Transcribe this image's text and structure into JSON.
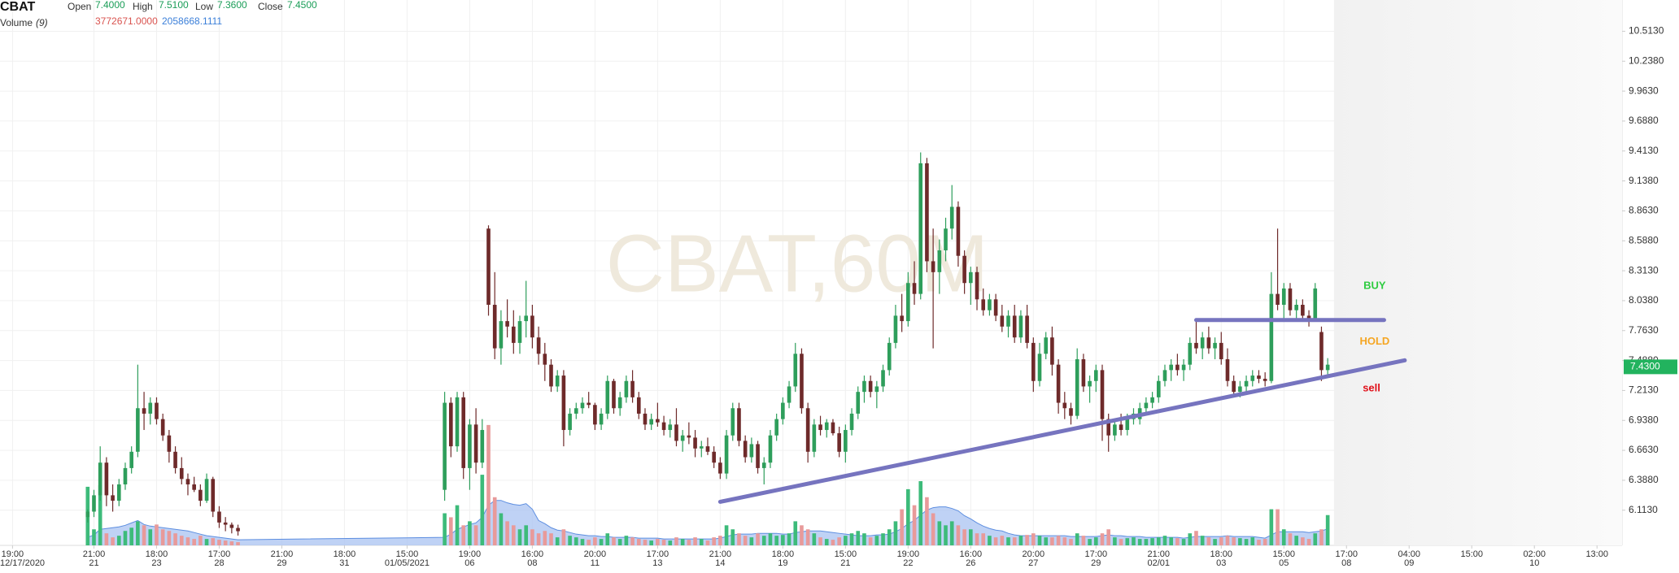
{
  "chart_data": {
    "type": "candlestick",
    "symbol": "CBAT",
    "watermark": "CBAT,60M",
    "readout": {
      "open_label": "Open",
      "open": "7.4000",
      "high_label": "High",
      "high": "7.5100",
      "low_label": "Low",
      "low": "7.3600",
      "close_label": "Close",
      "close": "7.4500",
      "volume_label": "Volume",
      "volume_period": "(9)",
      "volume": "3772671.0000",
      "volume_ma": "2058668.1111"
    },
    "x": [
      14,
      15,
      16,
      17,
      18,
      19,
      20,
      21,
      22,
      23,
      24,
      25,
      26,
      27,
      28,
      29,
      30,
      31,
      32,
      33,
      34,
      35,
      36,
      37,
      38,
      71,
      72,
      73,
      74,
      75,
      76,
      77,
      78,
      79,
      80,
      81,
      82,
      83,
      84,
      85,
      86,
      87,
      88,
      89,
      90,
      91,
      92,
      93,
      94,
      95,
      96,
      97,
      98,
      99,
      100,
      101,
      102,
      103,
      104,
      105,
      106,
      107,
      108,
      109,
      110,
      111,
      112,
      113,
      114,
      115,
      116,
      117,
      118,
      119,
      120,
      121,
      122,
      123,
      124,
      125,
      126,
      127,
      128,
      129,
      130,
      131,
      132,
      133,
      134,
      135,
      136,
      137,
      138,
      139,
      140,
      141,
      142,
      143,
      144,
      145,
      146,
      147,
      148,
      149,
      150,
      151,
      152,
      153,
      154,
      155,
      156,
      157,
      158,
      159,
      160,
      161,
      162,
      163,
      164,
      165,
      166,
      167,
      168,
      169,
      170,
      171,
      172,
      173,
      174,
      175,
      176,
      177,
      178,
      179,
      180,
      181,
      182,
      183,
      184,
      185,
      186,
      187,
      188,
      189,
      190,
      191,
      192,
      193,
      194,
      195,
      196,
      197,
      198,
      199,
      200,
      201,
      202,
      203,
      204,
      205,
      206,
      207,
      208,
      209,
      210,
      211,
      212
    ],
    "open": [
      6.05,
      6.1,
      6.25,
      6.55,
      6.25,
      6.2,
      6.35,
      6.5,
      6.65,
      7.05,
      7.0,
      7.1,
      6.95,
      6.8,
      6.65,
      6.5,
      6.4,
      6.35,
      6.3,
      6.2,
      6.4,
      6.1,
      6.0,
      5.98,
      5.95,
      6.3,
      7.1,
      6.7,
      7.15,
      6.5,
      6.9,
      6.55,
      8.7,
      8.0,
      7.6,
      7.85,
      7.8,
      7.65,
      7.85,
      7.9,
      7.7,
      7.55,
      7.45,
      7.25,
      7.35,
      6.85,
      7.0,
      7.05,
      7.1,
      7.08,
      6.9,
      7.0,
      7.3,
      7.05,
      7.15,
      7.3,
      7.15,
      7.0,
      6.9,
      6.95,
      6.92,
      6.85,
      6.9,
      6.75,
      6.8,
      6.78,
      6.68,
      6.7,
      6.65,
      6.55,
      6.45,
      6.8,
      7.05,
      6.75,
      6.6,
      6.72,
      6.5,
      6.55,
      6.8,
      6.95,
      7.1,
      7.25,
      7.55,
      7.05,
      6.65,
      6.9,
      6.85,
      6.92,
      6.82,
      6.65,
      6.85,
      7.0,
      7.2,
      7.3,
      7.2,
      7.25,
      7.4,
      7.65,
      7.9,
      7.85,
      8.2,
      8.1,
      9.3,
      8.4,
      8.3,
      8.5,
      8.7,
      8.9,
      8.45,
      8.2,
      8.3,
      8.05,
      7.95,
      8.05,
      7.9,
      7.8,
      7.9,
      7.7,
      7.9,
      7.65,
      7.3,
      7.55,
      7.7,
      7.45,
      7.1,
      7.05,
      6.98,
      7.5,
      7.25,
      7.3,
      7.4,
      6.95,
      6.8,
      6.9,
      6.85,
      6.95,
      6.95,
      7.05,
      7.1,
      7.15,
      7.3,
      7.4,
      7.45,
      7.4,
      7.45,
      7.65,
      7.6,
      7.7,
      7.6,
      7.65,
      7.5,
      7.3,
      7.2,
      7.25,
      7.3,
      7.35,
      7.32,
      7.3,
      8.1,
      8.0,
      8.15,
      7.95,
      8.0,
      7.9,
      7.85,
      7.75,
      7.4
    ],
    "high": [
      6.12,
      6.3,
      6.7,
      6.6,
      6.35,
      6.4,
      6.55,
      6.7,
      7.45,
      7.2,
      7.15,
      7.15,
      7.0,
      6.85,
      6.7,
      6.6,
      6.45,
      6.42,
      6.35,
      6.45,
      6.42,
      6.15,
      6.05,
      6.0,
      5.98,
      7.2,
      7.15,
      7.2,
      7.2,
      6.95,
      7.05,
      6.95,
      8.73,
      8.3,
      7.95,
      8.05,
      7.95,
      7.9,
      8.22,
      8.0,
      7.8,
      7.65,
      7.5,
      7.4,
      7.4,
      7.05,
      7.1,
      7.15,
      7.2,
      7.1,
      7.05,
      7.35,
      7.32,
      7.2,
      7.35,
      7.4,
      7.2,
      7.05,
      7.0,
      7.1,
      6.98,
      6.95,
      7.05,
      6.85,
      6.92,
      6.85,
      6.75,
      6.78,
      6.7,
      6.6,
      6.85,
      7.1,
      7.1,
      6.8,
      6.78,
      6.75,
      6.6,
      6.85,
      7.0,
      7.15,
      7.3,
      7.65,
      7.6,
      7.1,
      6.95,
      6.98,
      6.95,
      6.95,
      6.88,
      6.9,
      7.05,
      7.25,
      7.35,
      7.35,
      7.3,
      7.45,
      7.7,
      8.0,
      8.1,
      8.3,
      8.4,
      9.4,
      9.35,
      8.7,
      8.6,
      8.8,
      9.1,
      8.95,
      8.5,
      8.35,
      8.35,
      8.15,
      8.1,
      8.1,
      8.0,
      7.95,
      8.0,
      7.95,
      8.0,
      7.7,
      7.65,
      7.75,
      7.8,
      7.5,
      7.2,
      7.1,
      7.6,
      7.55,
      7.35,
      7.45,
      7.45,
      7.0,
      6.95,
      7.0,
      7.0,
      7.05,
      7.1,
      7.15,
      7.2,
      7.35,
      7.45,
      7.5,
      7.55,
      7.5,
      7.7,
      7.85,
      7.75,
      7.8,
      7.7,
      7.75,
      7.6,
      7.35,
      7.3,
      7.35,
      7.4,
      7.4,
      7.38,
      8.3,
      8.7,
      8.2,
      8.2,
      8.05,
      8.05,
      7.95,
      8.2,
      7.8,
      7.51
    ],
    "low": [
      6.0,
      6.05,
      6.2,
      6.15,
      6.1,
      6.15,
      6.3,
      6.45,
      6.6,
      6.85,
      6.9,
      6.9,
      6.75,
      6.55,
      6.45,
      6.35,
      6.25,
      6.28,
      6.15,
      6.18,
      6.05,
      5.95,
      5.92,
      5.9,
      5.88,
      6.2,
      6.6,
      6.65,
      6.4,
      6.3,
      6.45,
      6.5,
      7.9,
      7.5,
      7.45,
      7.7,
      7.55,
      7.55,
      7.7,
      7.6,
      7.45,
      7.3,
      7.2,
      7.2,
      6.7,
      6.8,
      6.95,
      7.0,
      7.05,
      6.85,
      6.85,
      6.95,
      7.0,
      6.98,
      7.1,
      7.1,
      6.95,
      6.85,
      6.85,
      6.88,
      6.8,
      6.78,
      6.7,
      6.65,
      6.72,
      6.6,
      6.6,
      6.62,
      6.5,
      6.4,
      6.4,
      6.75,
      6.7,
      6.55,
      6.55,
      6.45,
      6.35,
      6.5,
      6.75,
      6.9,
      7.05,
      7.2,
      7.0,
      6.55,
      6.6,
      6.8,
      6.78,
      6.8,
      6.6,
      6.55,
      6.8,
      6.95,
      7.1,
      7.15,
      7.05,
      7.2,
      7.35,
      7.6,
      7.75,
      7.8,
      8.0,
      8.05,
      8.3,
      7.6,
      8.1,
      8.4,
      8.6,
      8.35,
      8.1,
      8.0,
      7.95,
      7.9,
      7.9,
      7.85,
      7.75,
      7.7,
      7.65,
      7.65,
      7.6,
      7.2,
      7.25,
      7.5,
      7.35,
      7.0,
      6.95,
      6.9,
      6.95,
      7.2,
      7.1,
      7.2,
      6.75,
      6.65,
      6.75,
      6.8,
      6.8,
      6.9,
      6.9,
      7.0,
      7.05,
      7.1,
      7.25,
      7.3,
      7.35,
      7.3,
      7.4,
      7.55,
      7.5,
      7.55,
      7.5,
      7.45,
      7.25,
      7.15,
      7.15,
      7.2,
      7.25,
      7.28,
      7.25,
      7.28,
      7.95,
      7.85,
      7.9,
      7.85,
      7.85,
      7.8,
      7.85,
      7.3,
      7.36
    ],
    "close": [
      6.1,
      6.25,
      6.55,
      6.25,
      6.2,
      6.35,
      6.5,
      6.65,
      7.05,
      7.0,
      7.1,
      6.95,
      6.8,
      6.65,
      6.5,
      6.4,
      6.35,
      6.3,
      6.2,
      6.4,
      6.1,
      6.0,
      5.98,
      5.95,
      5.92,
      7.1,
      6.7,
      7.15,
      6.5,
      6.9,
      6.55,
      6.85,
      8.0,
      7.6,
      7.85,
      7.8,
      7.65,
      7.85,
      7.9,
      7.7,
      7.55,
      7.45,
      7.25,
      7.35,
      6.85,
      7.0,
      7.05,
      7.1,
      7.08,
      6.9,
      7.0,
      7.3,
      7.05,
      7.15,
      7.3,
      7.15,
      7.0,
      6.9,
      6.95,
      6.92,
      6.85,
      6.9,
      6.75,
      6.8,
      6.78,
      6.68,
      6.7,
      6.65,
      6.55,
      6.45,
      6.8,
      7.05,
      6.75,
      6.6,
      6.72,
      6.5,
      6.55,
      6.8,
      6.95,
      7.1,
      7.25,
      7.55,
      7.05,
      6.65,
      6.9,
      6.85,
      6.92,
      6.82,
      6.65,
      6.85,
      7.0,
      7.2,
      7.3,
      7.2,
      7.25,
      7.4,
      7.65,
      7.9,
      7.85,
      8.2,
      8.1,
      9.3,
      8.4,
      8.3,
      8.5,
      8.7,
      8.9,
      8.45,
      8.2,
      8.3,
      8.05,
      7.95,
      8.05,
      7.9,
      7.8,
      7.9,
      7.7,
      7.9,
      7.65,
      7.3,
      7.55,
      7.7,
      7.45,
      7.1,
      7.05,
      6.98,
      7.5,
      7.25,
      7.3,
      7.4,
      6.95,
      6.8,
      6.9,
      6.85,
      6.95,
      7.0,
      7.05,
      7.1,
      7.15,
      7.3,
      7.4,
      7.45,
      7.4,
      7.45,
      7.65,
      7.6,
      7.7,
      7.6,
      7.65,
      7.5,
      7.3,
      7.2,
      7.25,
      7.3,
      7.35,
      7.32,
      7.3,
      8.1,
      8.0,
      8.15,
      7.95,
      8.0,
      7.9,
      7.85,
      8.15,
      7.4,
      7.45
    ],
    "volume": [
      7300000,
      2000000,
      7500000,
      1500000,
      1000000,
      1200000,
      1800000,
      2200000,
      3000000,
      2500000,
      2000000,
      2600000,
      2000000,
      1800000,
      1500000,
      1200000,
      1000000,
      800000,
      1200000,
      800000,
      900000,
      700000,
      600000,
      500000,
      400000,
      4000000,
      3500000,
      5000000,
      2500000,
      3000000,
      2500000,
      8800000,
      15000000,
      6000000,
      4000000,
      3000000,
      2500000,
      2000000,
      2500000,
      2000000,
      1500000,
      1800000,
      1500000,
      1000000,
      2000000,
      1200000,
      1000000,
      800000,
      700000,
      1000000,
      800000,
      1500000,
      1000000,
      800000,
      1200000,
      1000000,
      800000,
      700000,
      600000,
      800000,
      700000,
      600000,
      1000000,
      800000,
      700000,
      1000000,
      800000,
      600000,
      1000000,
      1200000,
      2500000,
      2000000,
      1500000,
      1200000,
      1000000,
      1500000,
      1200000,
      1500000,
      1200000,
      1300000,
      1500000,
      3000000,
      2500000,
      2000000,
      1500000,
      1000000,
      800000,
      700000,
      1000000,
      1200000,
      1500000,
      1800000,
      1500000,
      1000000,
      1200000,
      1500000,
      2000000,
      3000000,
      4500000,
      7000000,
      5000000,
      8000000,
      6000000,
      4000000,
      3000000,
      2500000,
      3000000,
      2500000,
      2000000,
      2000000,
      1500000,
      1500000,
      1200000,
      1000000,
      1200000,
      1000000,
      1000000,
      1200000,
      1300000,
      1500000,
      1200000,
      1000000,
      1000000,
      1200000,
      1000000,
      800000,
      1500000,
      1200000,
      800000,
      1000000,
      1500000,
      2000000,
      1000000,
      800000,
      900000,
      1000000,
      800000,
      800000,
      900000,
      1000000,
      1200000,
      1000000,
      900000,
      800000,
      1500000,
      1800000,
      1200000,
      1000000,
      800000,
      1000000,
      1200000,
      1000000,
      900000,
      800000,
      1000000,
      700000,
      800000,
      4500000,
      4500000,
      2000000,
      1500000,
      1200000,
      1000000,
      800000,
      1500000,
      2000000,
      3772671
    ],
    "volume_ma": [
      1000000,
      1300000,
      2000000,
      2100000,
      2200000,
      2300000,
      2500000,
      2800000,
      3100000,
      2600000,
      2400000,
      2300000,
      2200000,
      2100000,
      2000000,
      1900000,
      1800000,
      1600000,
      1400000,
      1200000,
      1100000,
      1000000,
      900000,
      800000,
      700000,
      1000000,
      1400000,
      2000000,
      2300000,
      2600000,
      2800000,
      3500000,
      5000000,
      5600000,
      5600000,
      5300000,
      5100000,
      5000000,
      5200000,
      4500000,
      3100000,
      2700000,
      2200000,
      1900000,
      1800000,
      1600000,
      1400000,
      1300000,
      1200000,
      1200000,
      1100000,
      1100000,
      1000000,
      1000000,
      1000000,
      1000000,
      900000,
      900000,
      900000,
      900000,
      800000,
      800000,
      800000,
      800000,
      800000,
      800000,
      800000,
      800000,
      800000,
      900000,
      1100000,
      1300000,
      1400000,
      1400000,
      1400000,
      1500000,
      1500000,
      1500000,
      1500000,
      1400000,
      1400000,
      1600000,
      1700000,
      1800000,
      1800000,
      1800000,
      1700000,
      1600000,
      1500000,
      1400000,
      1300000,
      1200000,
      1200000,
      1200000,
      1300000,
      1300000,
      1400000,
      1700000,
      2100000,
      2700000,
      3100000,
      3800000,
      4400000,
      4700000,
      4800000,
      4800000,
      4600000,
      4300000,
      3700000,
      3300000,
      2800000,
      2400000,
      2100000,
      1900000,
      1800000,
      1500000,
      1300000,
      1200000,
      1200000,
      1200000,
      1200000,
      1200000,
      1200000,
      1200000,
      1200000,
      1100000,
      1100000,
      1100000,
      1100000,
      1100000,
      1200000,
      1300000,
      1200000,
      1200000,
      1100000,
      1100000,
      1100000,
      1000000,
      1000000,
      1000000,
      1000000,
      1000000,
      1000000,
      900000,
      1000000,
      1100000,
      1100000,
      1100000,
      1100000,
      1100000,
      1200000,
      1100000,
      1100000,
      1100000,
      1100000,
      1000000,
      900000,
      1300000,
      1700000,
      1700000,
      1700000,
      1700000,
      1700000,
      1600000,
      1700000,
      1800000,
      2058668.1111
    ],
    "xlim": [
      0,
      259
    ],
    "ylim": [
      5.79,
      10.8
    ],
    "volume_ylim": [
      0,
      16000000
    ],
    "yticks": [
      {
        "value": 10.513,
        "label": "10.5130"
      },
      {
        "value": 10.238,
        "label": "10.2380"
      },
      {
        "value": 9.963,
        "label": "9.9630"
      },
      {
        "value": 9.688,
        "label": "9.6880"
      },
      {
        "value": 9.413,
        "label": "9.4130"
      },
      {
        "value": 9.138,
        "label": "9.1380"
      },
      {
        "value": 8.863,
        "label": "8.8630"
      },
      {
        "value": 8.588,
        "label": "8.5880"
      },
      {
        "value": 8.313,
        "label": "8.3130"
      },
      {
        "value": 8.038,
        "label": "8.0380"
      },
      {
        "value": 7.763,
        "label": "7.7630"
      },
      {
        "value": 7.488,
        "label": "7.4880"
      },
      {
        "value": 7.213,
        "label": "7.2130"
      },
      {
        "value": 6.938,
        "label": "6.9380"
      },
      {
        "value": 6.663,
        "label": "6.6630"
      },
      {
        "value": 6.388,
        "label": "6.3880"
      },
      {
        "value": 6.113,
        "label": "6.1130"
      }
    ],
    "xticks": [
      {
        "value": 2,
        "label": "19:00",
        "date": "12/17/2020"
      },
      {
        "value": 15,
        "label": "21:00",
        "date": "21"
      },
      {
        "value": 25,
        "label": "18:00",
        "date": "23"
      },
      {
        "value": 35,
        "label": "17:00",
        "date": "28"
      },
      {
        "value": 45,
        "label": "21:00",
        "date": "29"
      },
      {
        "value": 55,
        "label": "18:00",
        "date": "31"
      },
      {
        "value": 65,
        "label": "15:00",
        "date": "01/05/2021"
      },
      {
        "value": 75,
        "label": "19:00",
        "date": "06"
      },
      {
        "value": 85,
        "label": "16:00",
        "date": "08"
      },
      {
        "value": 95,
        "label": "20:00",
        "date": "11"
      },
      {
        "value": 105,
        "label": "17:00",
        "date": "13"
      },
      {
        "value": 115,
        "label": "21:00",
        "date": "14"
      },
      {
        "value": 125,
        "label": "18:00",
        "date": "19"
      },
      {
        "value": 135,
        "label": "15:00",
        "date": "21"
      },
      {
        "value": 145,
        "label": "19:00",
        "date": "22"
      },
      {
        "value": 155,
        "label": "16:00",
        "date": "26"
      },
      {
        "value": 165,
        "label": "20:00",
        "date": "27"
      },
      {
        "value": 175,
        "label": "17:00",
        "date": "29"
      },
      {
        "value": 185,
        "label": "21:00",
        "date": "02/01"
      },
      {
        "value": 195,
        "label": "18:00",
        "date": "03"
      },
      {
        "value": 205,
        "label": "15:00",
        "date": "05"
      },
      {
        "value": 215,
        "label": "17:00",
        "date": "08"
      },
      {
        "value": 225,
        "label": "04:00",
        "date": "09"
      },
      {
        "value": 235,
        "label": "15:00"
      },
      {
        "value": 245,
        "label": "02:00",
        "date": "10"
      },
      {
        "value": 255,
        "label": "13:00"
      }
    ],
    "last_price": {
      "value": 7.43,
      "label": "7.4300",
      "color": "#22b35e"
    },
    "trendlines": [
      {
        "x": [
          115,
          224.3
        ],
        "y": [
          6.19,
          7.49
        ]
      },
      {
        "x": [
          191,
          221
        ],
        "y": [
          7.86,
          7.86
        ]
      }
    ],
    "annotations": [
      {
        "text": "BUY",
        "x": 219.5,
        "y": 8.17,
        "color": "#2ecc40"
      },
      {
        "text": "HOLD",
        "x": 219.5,
        "y": 7.66,
        "color": "#f5a623"
      },
      {
        "text": "sell",
        "x": 219,
        "y": 7.23,
        "color": "#e0101a"
      }
    ],
    "colors": {
      "up": "#2e9e5b",
      "down": "#6e2a2a",
      "volume_up": "#3dbb7a",
      "volume_down": "#e89a9a",
      "volume_ma": "#5d8ee0",
      "volume_ma_fill": "#a9c3f2",
      "trendline": "#7674bf"
    },
    "grid": true
  }
}
